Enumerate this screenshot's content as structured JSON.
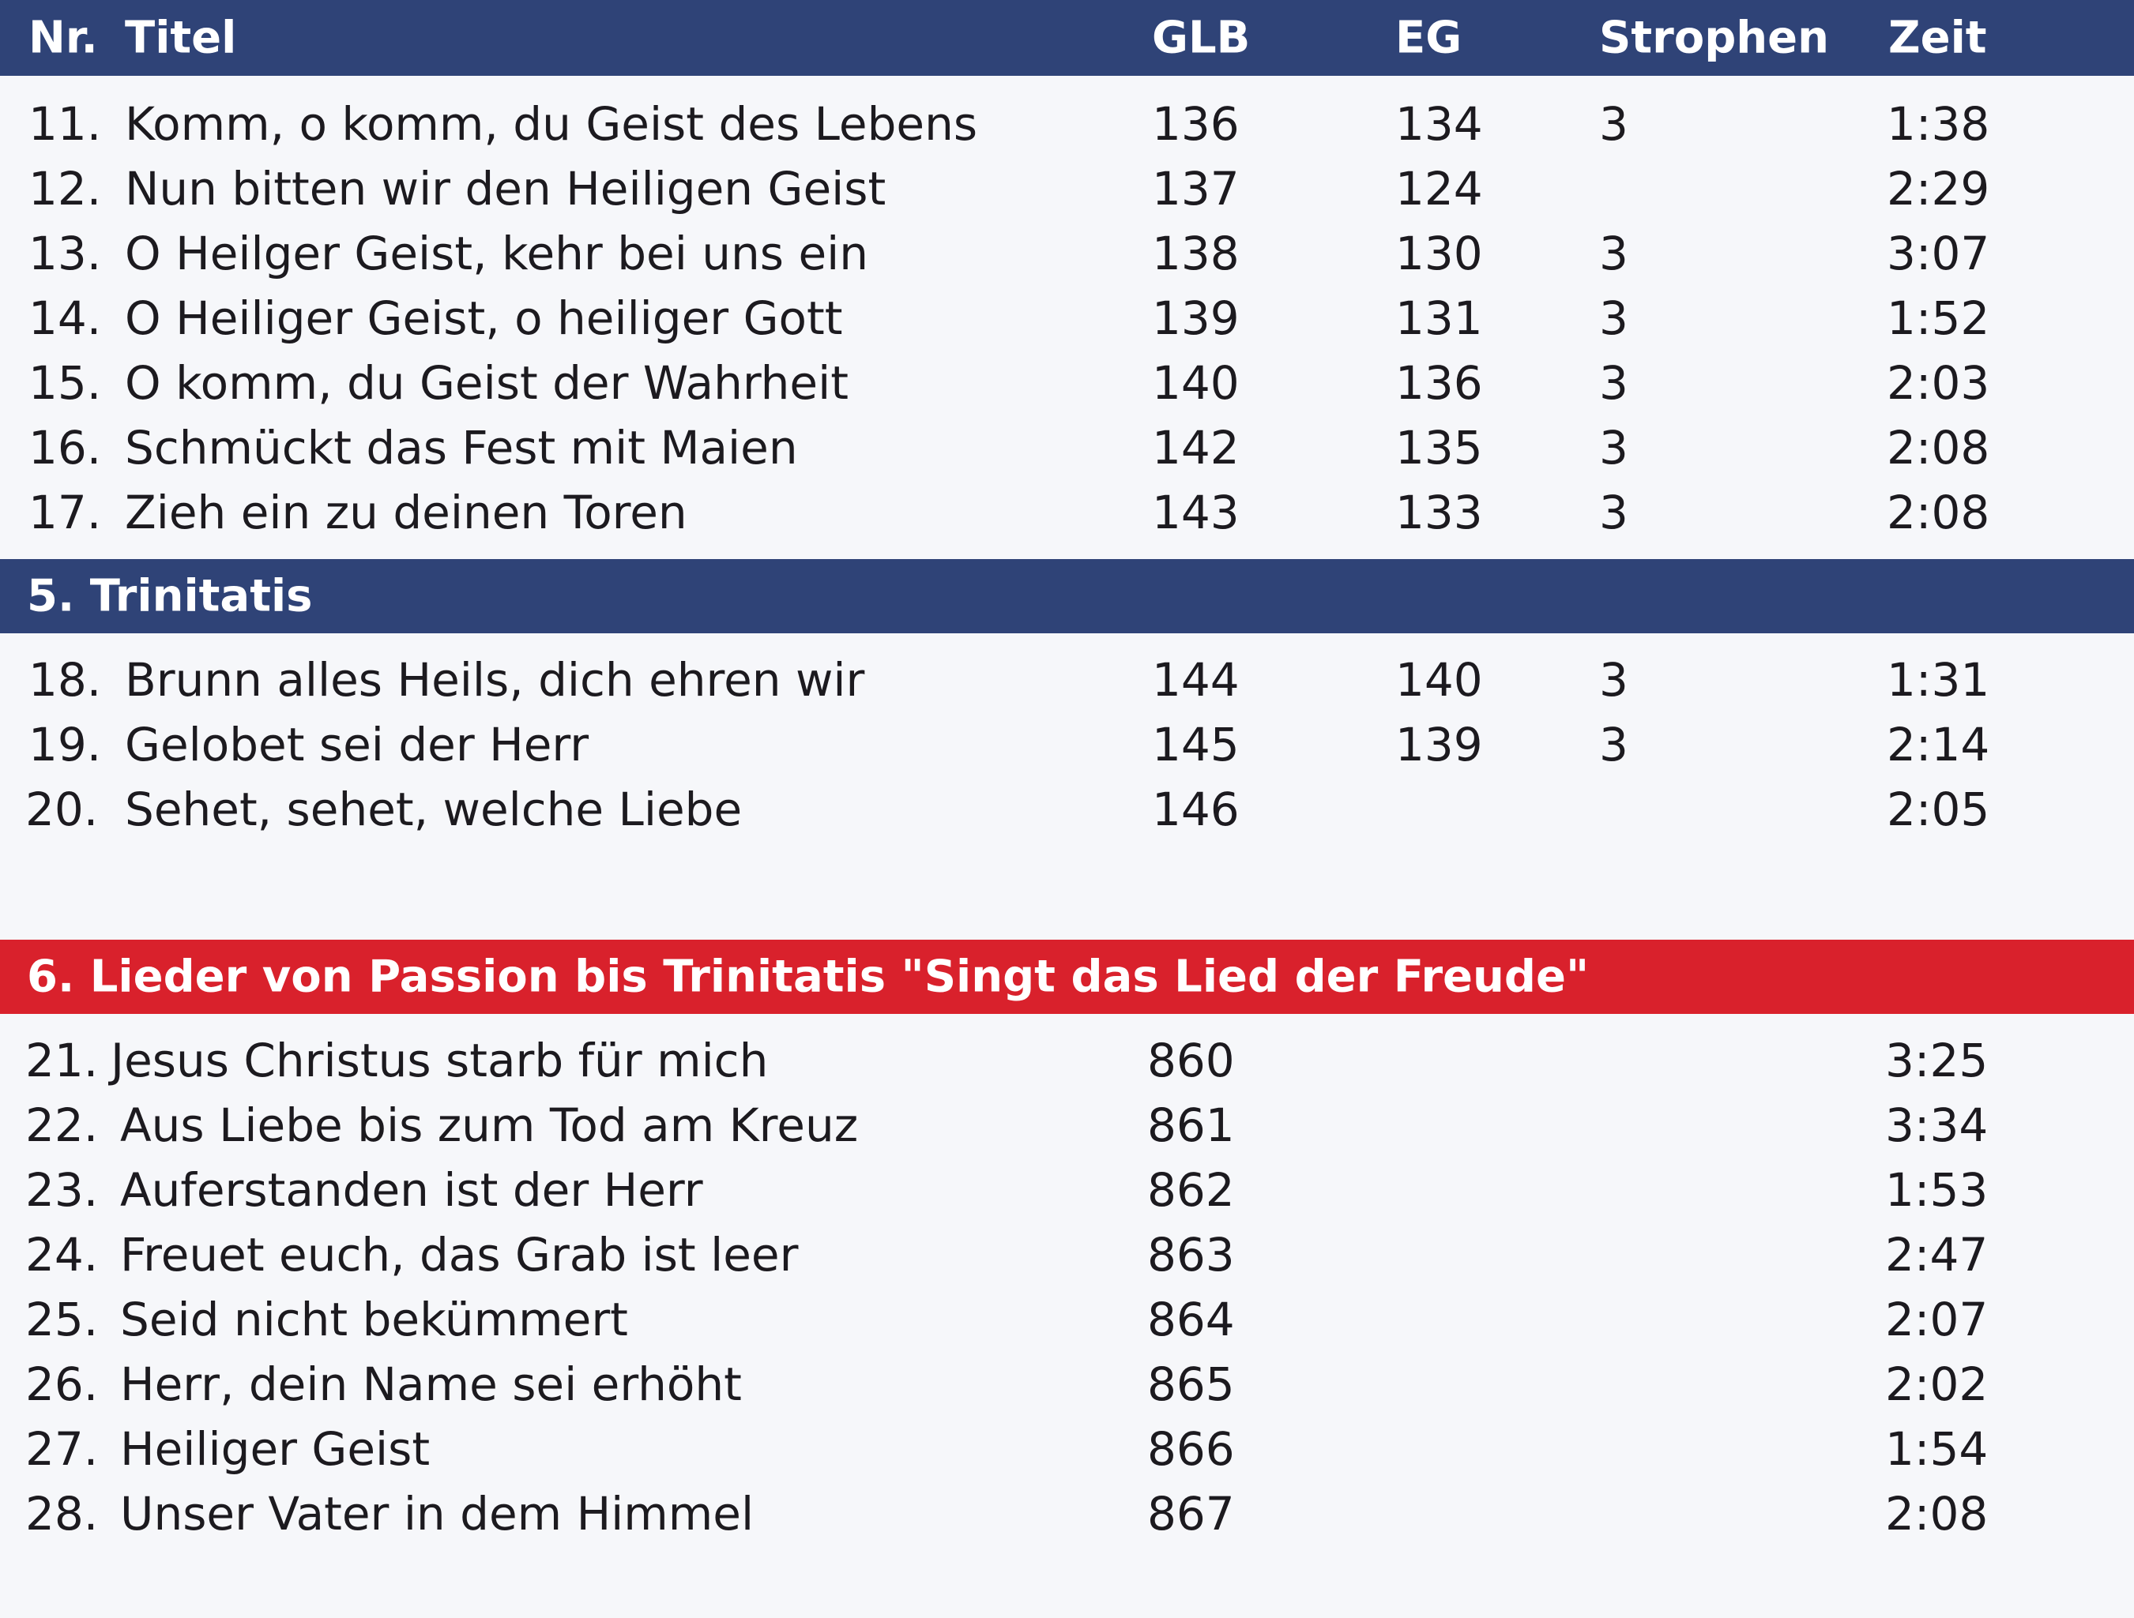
{
  "header": {
    "nr": "Nr.",
    "title": "Titel",
    "glb": "GLB",
    "eg": "EG",
    "strophen": "Strophen",
    "zeit": "Zeit"
  },
  "section1": {
    "rows": [
      {
        "nr": "11.",
        "title": "Komm, o komm, du Geist des Lebens",
        "glb": "136",
        "eg": "134",
        "strophen": "3",
        "zeit": "1:38"
      },
      {
        "nr": "12.",
        "title": "Nun bitten wir den Heiligen Geist",
        "glb": "137",
        "eg": "124",
        "strophen": "",
        "zeit": "2:29"
      },
      {
        "nr": "13.",
        "title": "O Heilger Geist, kehr bei uns ein",
        "glb": "138",
        "eg": "130",
        "strophen": "3",
        "zeit": "3:07"
      },
      {
        "nr": "14.",
        "title": "O Heiliger Geist, o heiliger Gott",
        "glb": "139",
        "eg": "131",
        "strophen": "3",
        "zeit": "1:52"
      },
      {
        "nr": "15.",
        "title": "O komm, du Geist der Wahrheit",
        "glb": "140",
        "eg": "136",
        "strophen": "3",
        "zeit": "2:03"
      },
      {
        "nr": "16.",
        "title": "Schmückt das Fest mit Maien",
        "glb": "142",
        "eg": "135",
        "strophen": "3",
        "zeit": "2:08"
      },
      {
        "nr": "17.",
        "title": "Zieh ein zu deinen Toren",
        "glb": "143",
        "eg": "133",
        "strophen": "3",
        "zeit": "2:08"
      }
    ]
  },
  "section2": {
    "title": "5. Trinitatis",
    "rows": [
      {
        "nr": "18.",
        "title": "Brunn alles Heils, dich ehren wir",
        "glb": "144",
        "eg": "140",
        "strophen": "3",
        "zeit": "1:31"
      },
      {
        "nr": "19.",
        "title": "Gelobet sei der Herr",
        "glb": "145",
        "eg": "139",
        "strophen": "3",
        "zeit": "2:14"
      },
      {
        "nr": "20.",
        "title": "Sehet, sehet, welche Liebe",
        "glb": "146",
        "eg": "",
        "strophen": "",
        "zeit": "2:05"
      }
    ]
  },
  "section3": {
    "title": "6. Lieder von Passion bis Trinitatis \"Singt das Lied der Freude\"",
    "rows": [
      {
        "nr": "21.",
        "title": "Jesus Christus starb für mich",
        "glb": "860",
        "zeit": "3:25"
      },
      {
        "nr": "22.",
        "title": "Aus Liebe bis zum Tod am Kreuz",
        "glb": "861",
        "zeit": "3:34"
      },
      {
        "nr": "23.",
        "title": "Auferstanden ist der Herr",
        "glb": "862",
        "zeit": "1:53"
      },
      {
        "nr": "24.",
        "title": "Freuet euch, das Grab ist leer",
        "glb": "863",
        "zeit": "2:47"
      },
      {
        "nr": "25.",
        "title": "Seid nicht bekümmert",
        "glb": "864",
        "zeit": "2:07"
      },
      {
        "nr": "26.",
        "title": "Herr, dein Name sei erhöht",
        "glb": "865",
        "zeit": "2:02"
      },
      {
        "nr": "27.",
        "title": "Heiliger Geist",
        "glb": "866",
        "zeit": "1:54"
      },
      {
        "nr": "28.",
        "title": "Unser Vater in dem Himmel",
        "glb": "867",
        "zeit": "2:08"
      }
    ]
  },
  "colors": {
    "header_blue": "#2f4377",
    "section_red": "#d9212c",
    "background": "#f6f7fa",
    "text": "#1c1a1f"
  }
}
